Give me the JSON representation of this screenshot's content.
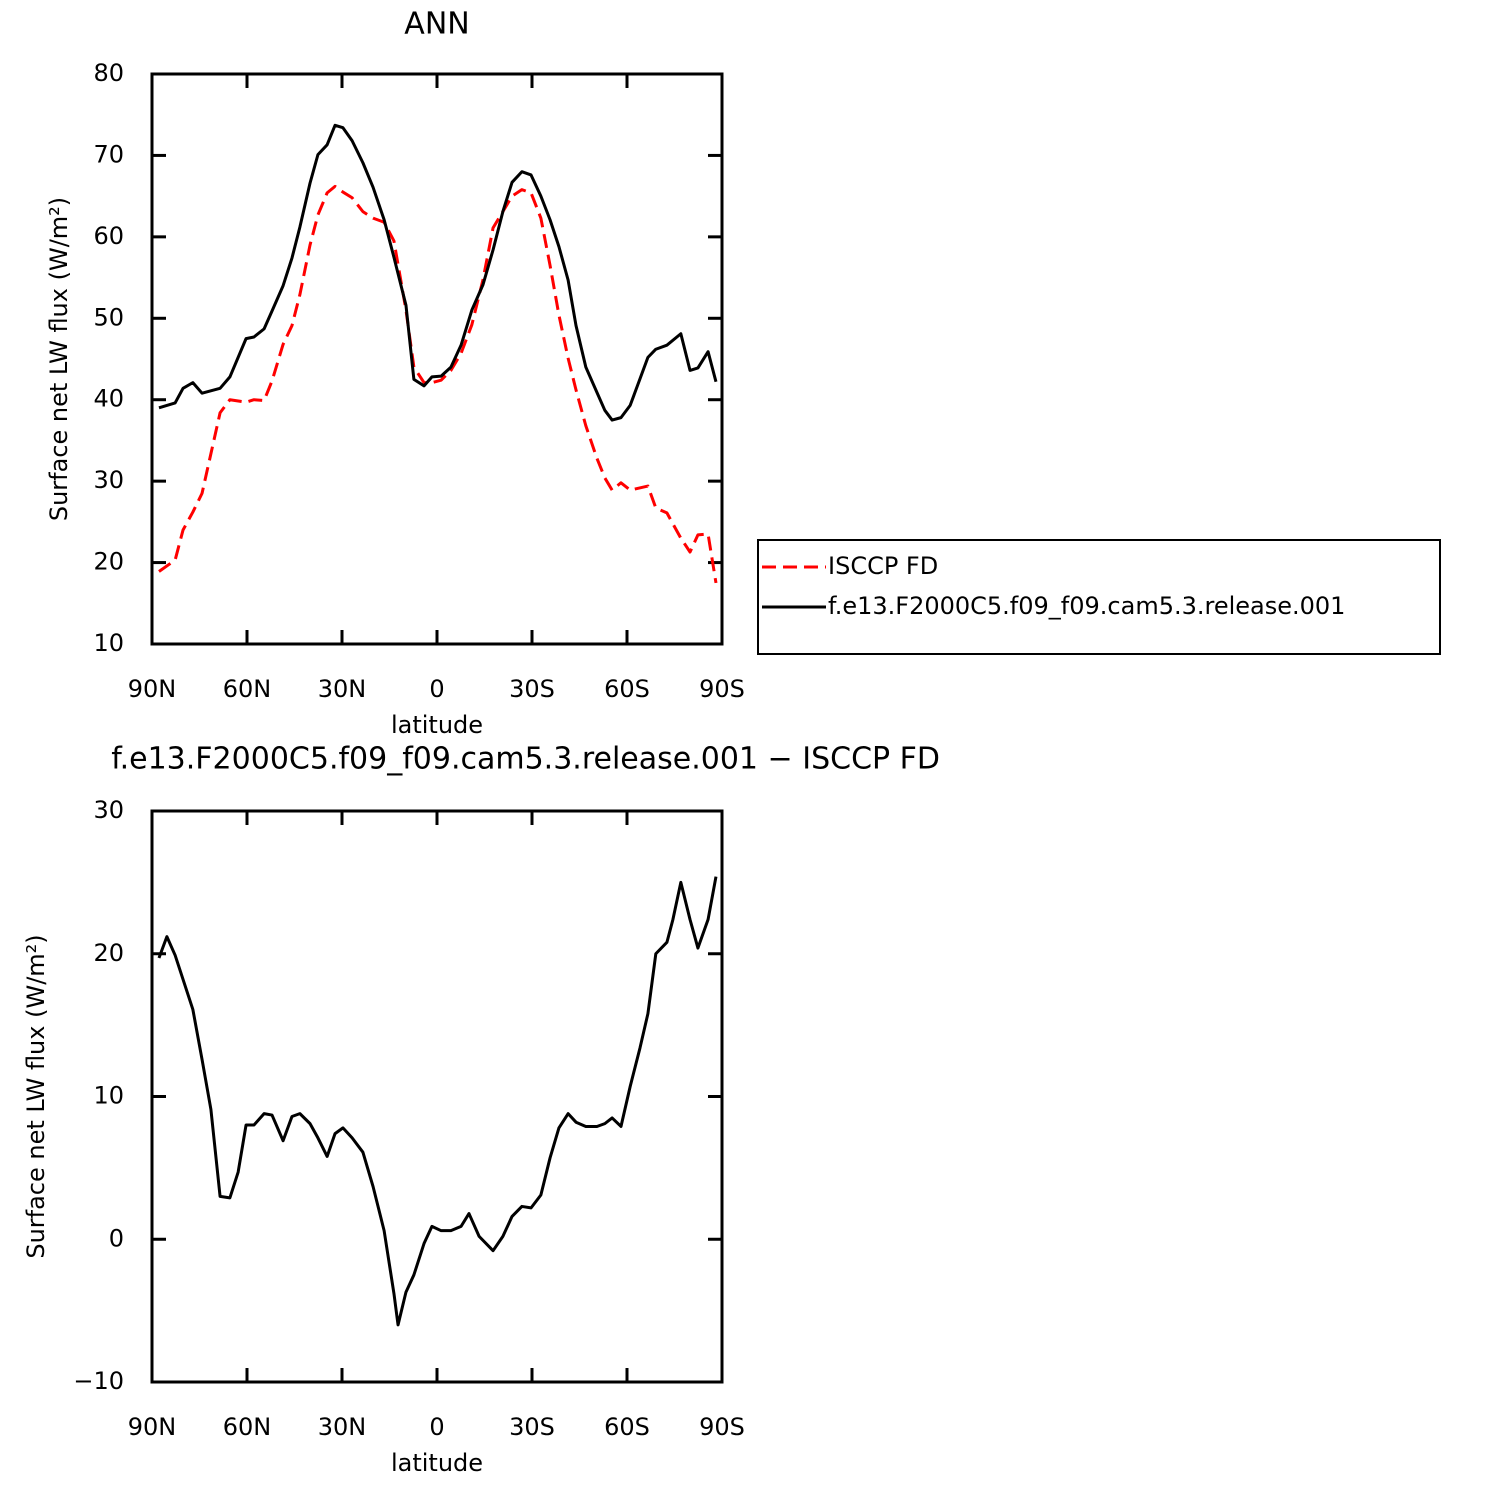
{
  "chart_data": [
    {
      "type": "line",
      "title": "ANN",
      "xlabel": "latitude",
      "ylabel": "Surface net LW flux (W/m²)",
      "x": [
        87.8,
        82.7,
        80.2,
        77.1,
        74.2,
        68.5,
        65.4,
        60.3,
        57.8,
        54.6,
        52.1,
        48.6,
        45.8,
        43.3,
        40.1,
        37.6,
        34.7,
        32.2,
        29.7,
        26.8,
        23.4,
        20.2,
        16.7,
        13.6,
        9.8,
        7.3,
        4.1,
        1.6,
        -1.3,
        -4.4,
        -7.6,
        -11.0,
        -14.5,
        -17.7,
        -20.8,
        -23.7,
        -26.8,
        -29.7,
        -32.8,
        -35.7,
        -38.5,
        -41.4,
        -43.9,
        -47.0,
        -50.5,
        -53.0,
        -55.3,
        -58.1,
        -61.0,
        -66.6,
        -69.1,
        -72.6,
        -77.0,
        -79.9,
        -82.4,
        -85.6,
        -88.1
      ],
      "series": [
        {
          "name": "ISCCP FD",
          "color": "#ff0000",
          "style": "dashed",
          "values": [
            18.9,
            20.3,
            24.0,
            26.2,
            28.5,
            38.4,
            40.0,
            39.7,
            40.0,
            39.9,
            42.3,
            46.8,
            49.1,
            52.9,
            59.0,
            62.7,
            65.4,
            66.2,
            65.5,
            64.8,
            63.1,
            62.3,
            61.8,
            59.5,
            51.0,
            44.0,
            42.1,
            42.1,
            42.4,
            43.6,
            45.7,
            49.2,
            54.7,
            61.1,
            63.1,
            65.0,
            65.8,
            65.4,
            62.3,
            56.5,
            50.4,
            45.1,
            41.2,
            36.8,
            32.8,
            30.4,
            28.9,
            29.8,
            28.9,
            29.4,
            26.7,
            26.1,
            23.0,
            21.3,
            23.4,
            23.5,
            17.5
          ]
        },
        {
          "name": "f.e13.F2000C5.f09_f09.cam5.3.release.001",
          "color": "#000000",
          "style": "solid",
          "values": [
            39.0,
            39.6,
            41.4,
            42.1,
            40.8,
            41.4,
            42.8,
            47.5,
            47.7,
            48.7,
            50.9,
            54.0,
            57.4,
            61.2,
            66.6,
            70.1,
            71.3,
            73.7,
            73.4,
            71.8,
            69.1,
            66.1,
            62.1,
            57.5,
            51.6,
            42.5,
            41.7,
            42.8,
            42.9,
            44.0,
            46.7,
            51.0,
            54.1,
            58.4,
            63.1,
            66.7,
            68.0,
            67.6,
            65.0,
            62.1,
            58.8,
            54.7,
            49.1,
            44.0,
            40.9,
            38.7,
            37.5,
            37.8,
            39.3,
            45.2,
            46.2,
            46.7,
            48.1,
            43.6,
            43.9,
            45.9,
            42.2
          ]
        }
      ],
      "xlim": [
        90,
        -90
      ],
      "xticks": [
        {
          "value": 90,
          "label": "90N"
        },
        {
          "value": 60,
          "label": "60N"
        },
        {
          "value": 30,
          "label": "30N"
        },
        0,
        {
          "value": -30,
          "label": "30S"
        },
        {
          "value": -60,
          "label": "60S"
        },
        {
          "value": -90,
          "label": "90S"
        }
      ],
      "ylim": [
        10,
        80
      ],
      "yticks": [
        10,
        20,
        30,
        40,
        50,
        60,
        70,
        80
      ],
      "legend": "outside-right"
    },
    {
      "type": "line",
      "title": "f.e13.F2000C5.f09_f09.cam5.3.release.001 − ISCCP FD",
      "xlabel": "latitude",
      "ylabel": "Surface net LW flux (W/m²)",
      "x": [
        87.8,
        85.3,
        82.7,
        77.1,
        74.2,
        71.4,
        68.5,
        65.4,
        62.8,
        60.3,
        57.8,
        54.6,
        52.1,
        48.6,
        45.8,
        43.3,
        40.1,
        37.6,
        34.7,
        32.2,
        29.7,
        26.8,
        23.4,
        20.2,
        16.7,
        13.6,
        12.3,
        9.8,
        7.3,
        4.1,
        1.6,
        -1.3,
        -4.4,
        -7.6,
        -10.1,
        -13.3,
        -17.7,
        -20.8,
        -23.7,
        -26.8,
        -29.7,
        -32.8,
        -35.7,
        -38.5,
        -41.4,
        -43.9,
        -47.0,
        -50.5,
        -53.0,
        -55.3,
        -58.1,
        -61.0,
        -64.1,
        -66.6,
        -69.1,
        -72.6,
        -74.5,
        -77.0,
        -79.9,
        -82.4,
        -85.6,
        -88.1
      ],
      "series": [
        {
          "color": "#000000",
          "style": "solid",
          "values": [
            19.7,
            21.2,
            19.9,
            16.1,
            12.6,
            9.1,
            3.0,
            2.9,
            4.7,
            8.0,
            8.0,
            8.8,
            8.7,
            6.9,
            8.6,
            8.8,
            8.1,
            7.1,
            5.8,
            7.4,
            7.8,
            7.1,
            6.1,
            3.7,
            0.6,
            -3.8,
            -6.0,
            -3.7,
            -2.5,
            -0.3,
            0.9,
            0.6,
            0.6,
            0.9,
            1.8,
            0.2,
            -0.8,
            0.2,
            1.6,
            2.3,
            2.2,
            3.1,
            5.7,
            7.8,
            8.8,
            8.2,
            7.9,
            7.9,
            8.1,
            8.5,
            7.9,
            10.7,
            13.4,
            15.8,
            20.0,
            20.8,
            22.4,
            25.0,
            22.4,
            20.4,
            22.4,
            25.4
          ]
        }
      ],
      "xlim": [
        90,
        -90
      ],
      "xticks": [
        {
          "value": 90,
          "label": "90N"
        },
        {
          "value": 60,
          "label": "60N"
        },
        {
          "value": 30,
          "label": "30N"
        },
        0,
        {
          "value": -30,
          "label": "30S"
        },
        {
          "value": -60,
          "label": "60S"
        },
        {
          "value": -90,
          "label": "90S"
        }
      ],
      "ylim": [
        -10,
        30
      ],
      "yticks": [
        {
          "value": -10,
          "label": "−10"
        },
        0,
        10,
        20,
        30
      ]
    }
  ]
}
